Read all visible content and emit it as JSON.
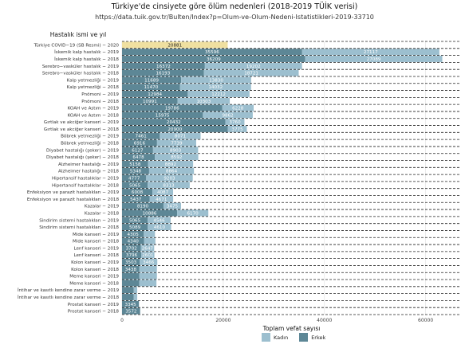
{
  "chart_data": {
    "type": "bar",
    "orientation": "horizontal",
    "stacked": true,
    "title": "Türkiye'de cinsiyete göre ölüm nedenleri (2018-2019 TÜİK verisi)",
    "subtitle": "https://data.tuik.gov.tr/Bulten/Index?p=Olum-ve-Olum-Nedeni-Istatistikleri-2019-33710",
    "xlabel": "Toplam vefat sayısı",
    "ylabel": "Hastalık ismi ve yıl",
    "xlim": [
      0,
      67000
    ],
    "xticks": [
      0,
      20000,
      40000,
      60000
    ],
    "xtick_labels": [
      "0",
      "20000",
      "40000",
      "60000"
    ],
    "legend": {
      "placement": "bottom",
      "entries": [
        "Kadın",
        "Erkek"
      ]
    },
    "colors": {
      "Kadın": "#9cbfcf",
      "Erkek": "#5d8796",
      "single": "#f0e0a0"
    },
    "categories": [
      "Türkiye COVID−19 (SB Resmi) − 2020",
      "İskemik kalp hastalık − 2019",
      "İskemik kalp hastalık − 2018",
      "Serebro−vasküler hastalık − 2019",
      "Serebro−vasküler hastalık − 2018",
      "Kalp yetmezliği − 2019",
      "Kalp yetmezliği − 2018",
      "Pnömoni − 2019",
      "Pnömoni − 2018",
      "KOAH ve Astım − 2019",
      "KOAH ve Astım − 2018",
      "Gırtlak ve akciğer kanseri − 2019",
      "Gırtlak ve akciğer kanseri − 2018",
      "Böbrek yetmezliği − 2019",
      "Böbrek yetmezliği − 2018",
      "Diyabet hastalığı (şeker) − 2019",
      "Diyabet hastalığı (şeker) − 2018",
      "Alzheimer hastalığı − 2019",
      "Alzheimer hastalığı − 2018",
      "Hipertansif hastalıklar − 2019",
      "Hipertansif hastalıklar − 2018",
      "Enfeksiyon ve parazit hastalıkları − 2019",
      "Enfeksiyon ve parazit hastalıkları − 2018",
      "Kazalar − 2019",
      "Kazalar − 2018",
      "Sindirim sistemi hastalıkları − 2019",
      "Sindirim sistemi hastalıkları − 2018",
      "Mide kanseri − 2019",
      "Mide kanseri − 2018",
      "Lenf kanseri − 2019",
      "Lenf kanseri − 2018",
      "Kolon kanseri − 2019",
      "Kolon kanseri − 2018",
      "Meme kanseri − 2019",
      "Meme kanseri − 2018",
      "İntihar ve kasıtlı kendine zarar verme − 2019",
      "İntihar ve kasıtlı kendine zarar verme − 2018",
      "Prostat kanseri − 2019",
      "Prostat kanseri − 2018"
    ],
    "series": [
      {
        "name": "Erkek",
        "values": [
          null,
          35596,
          36209,
          16372,
          16193,
          11689,
          11470,
          12984,
          10991,
          19786,
          15975,
          20432,
          20900,
          7461,
          6916,
          6127,
          6478,
          5158,
          5348,
          4777,
          5065,
          6008,
          5437,
          8190,
          10886,
          5065,
          5089,
          4305,
          4340,
          3702,
          3796,
          3503,
          3438,
          3400,
          3400,
          2300,
          2300,
          3345,
          3572
        ]
      },
      {
        "name": "Kadın",
        "values": [
          null,
          27117,
          27089,
          19202,
          18721,
          13830,
          14032,
          12212,
          10303,
          6228,
          9862,
          3760,
          3775,
          8071,
          7739,
          8903,
          8592,
          8892,
          8864,
          9203,
          8313,
          4087,
          4671,
          3475,
          6170,
          4546,
          4610,
          2200,
          2250,
          2647,
          2601,
          3466,
          3450,
          3500,
          3400,
          700,
          700,
          null,
          null
        ]
      },
      {
        "name": "single",
        "values": [
          20881,
          null,
          null,
          null,
          null,
          null,
          null,
          null,
          null,
          null,
          null,
          null,
          null,
          null,
          null,
          null,
          null,
          null,
          null,
          null,
          null,
          null,
          null,
          null,
          null,
          null,
          null,
          null,
          null,
          null,
          null,
          null,
          null,
          null,
          null,
          null,
          null,
          null,
          null
        ]
      }
    ],
    "bar_labels": {
      "Erkek": [
        "",
        "35596",
        "36209",
        "16372",
        "16193",
        "11689",
        "11470",
        "12984",
        "10991",
        "19786",
        "15975",
        "20432",
        "20900",
        "7461",
        "6916",
        "6127",
        "6478",
        "5158",
        "5348",
        "4777",
        "5065",
        "6008",
        "5437",
        "8190",
        "10886",
        "5065",
        "5089",
        "4305",
        "4340",
        "3702",
        "3796",
        "3503",
        "3438",
        "",
        "",
        "",
        "",
        "3345",
        "3572"
      ],
      "Kadın": [
        "",
        "27117",
        "27089",
        "19202",
        "18721",
        "13830",
        "14032",
        "12212",
        "10303",
        "6228",
        "9862",
        "3760",
        "3775",
        "8071",
        "7739",
        "8903",
        "8592",
        "8892",
        "8864",
        "9203",
        "8313",
        "4087",
        "4671",
        "3475",
        "6170",
        "4546",
        "4610",
        "",
        "",
        "2647",
        "2601",
        "3466",
        "",
        "",
        "",
        "",
        "",
        "",
        ""
      ],
      "single": [
        "20881"
      ]
    }
  },
  "legend_labels": {
    "female": "Kadın",
    "male": "Erkek"
  }
}
